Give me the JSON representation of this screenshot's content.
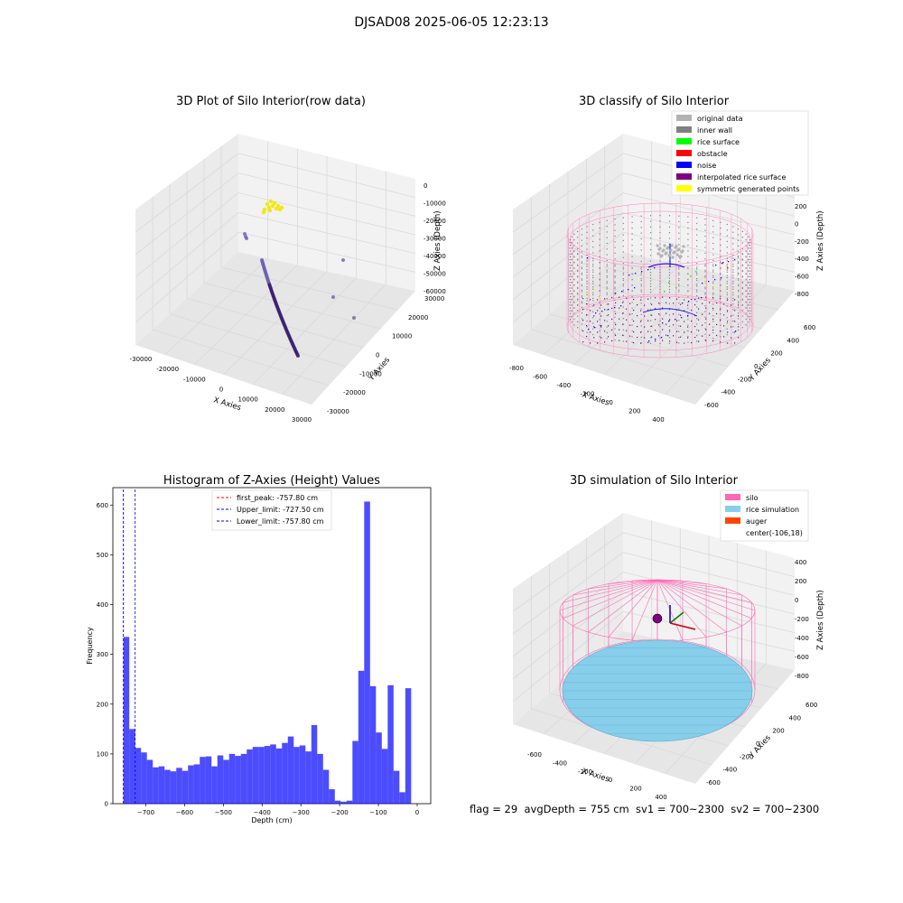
{
  "figure": {
    "suptitle": "DJSAD08 2025-06-05 12:23:13",
    "footer": "flag = 29  avgDepth = 755 cm  sv1 = 700~2300  sv2 = 700~2300"
  },
  "chart_data": [
    {
      "type": "scatter",
      "subtype": "3d",
      "title": "3D Plot of Silo Interior(row data)",
      "xlabel": "X Axies",
      "ylabel": "Y Axies",
      "zlabel": "Z Axies (Depth)",
      "x_ticks": [
        "-30000",
        "-20000",
        "-10000",
        "0",
        "10000",
        "20000",
        "30000"
      ],
      "y_ticks": [
        "-30000",
        "-20000",
        "-10000",
        "0",
        "10000",
        "20000",
        "30000"
      ],
      "z_ticks": [
        "-60000",
        "-50000",
        "-40000",
        "-30000",
        "-20000",
        "-10000",
        "0"
      ],
      "grid": true,
      "series": [
        {
          "color": "#3b1e6e",
          "description_points": "curved arc of points descending from about (-2000,-2000,-40000) to (20000,0,-60000)"
        },
        {
          "color": "#f5e614",
          "description_points": "small cluster near the top"
        },
        {
          "color": "#7b6fb0",
          "description_points": "few scattered outlier points"
        }
      ],
      "colors": {
        "arc": "#3b1e6e",
        "cluster": "#f5e614",
        "outlier": "#6a5fb0"
      }
    },
    {
      "type": "scatter",
      "subtype": "3d",
      "title": "3D classify of Silo Interior",
      "ylabel": "Y Axies",
      "xlabel": "X Axies",
      "zlabel": "Z Axies (Depth)",
      "x_ticks": [
        "-800",
        "-600",
        "-400",
        "-200",
        "0",
        "200",
        "400"
      ],
      "y_ticks": [
        "-600",
        "-400",
        "-200",
        "0",
        "200",
        "400",
        "600"
      ],
      "z_ticks": [
        "-800",
        "-600",
        "-400",
        "-200",
        "0",
        "200"
      ],
      "legend_placement": "top-right",
      "legend": [
        {
          "label": "original data",
          "color": "#b3b3b3"
        },
        {
          "label": "inner wall",
          "color": "#808080"
        },
        {
          "label": "rice surface",
          "color": "#00ff00"
        },
        {
          "label": "obstacle",
          "color": "#ff0000"
        },
        {
          "label": "noise",
          "color": "#0000ff"
        },
        {
          "label": "interpolated rice surface",
          "color": "#800080"
        },
        {
          "label": "symmetric generated points",
          "color": "#ffff00"
        }
      ],
      "grid": true
    },
    {
      "type": "bar",
      "subtype": "histogram",
      "title": "Histogram of Z-Axies (Height) Values",
      "xlabel": "Depth (cm)",
      "ylabel": "Frequency",
      "xlim": [
        -785,
        35
      ],
      "ylim": [
        0,
        635
      ],
      "x_ticks": [
        -700,
        -600,
        -500,
        -400,
        -300,
        -200,
        -100,
        0
      ],
      "y_ticks": [
        0,
        100,
        200,
        300,
        400,
        500,
        600
      ],
      "bin_start": -757.8,
      "bin_width": 15.15,
      "values": [
        335,
        150,
        112,
        103,
        88,
        73,
        75,
        68,
        65,
        72,
        66,
        77,
        79,
        94,
        95,
        75,
        97,
        88,
        100,
        96,
        100,
        109,
        114,
        114,
        116,
        119,
        111,
        122,
        135,
        114,
        117,
        105,
        158,
        100,
        68,
        29,
        6,
        4,
        6,
        126,
        267,
        607,
        236,
        143,
        110,
        238,
        66,
        23,
        232
      ],
      "bar_color": "#0000ff",
      "bar_opacity": 0.7,
      "vlines": [
        {
          "x": -757.8,
          "color": "#ff0000",
          "label": "first_peak: -757.80 cm"
        },
        {
          "x": -727.5,
          "color": "#0000ff",
          "label": "Upper_limit: -727.50 cm"
        },
        {
          "x": -757.8,
          "color": "#0000ff",
          "label": "Lower_limit: -757.80 cm"
        }
      ],
      "legend_placement": "top-center",
      "grid": false
    },
    {
      "type": "scatter",
      "subtype": "3d",
      "title": "3D simulation of Silo Interior",
      "xlabel": "X Axies",
      "ylabel": "Y Axies",
      "zlabel": "Z Axies (Depth)",
      "x_ticks": [
        "-600",
        "-400",
        "-200",
        "0",
        "200",
        "400"
      ],
      "y_ticks": [
        "-600",
        "-400",
        "-200",
        "0",
        "200",
        "400",
        "600"
      ],
      "z_ticks": [
        "-800",
        "-600",
        "-400",
        "-200",
        "0",
        "200",
        "400"
      ],
      "legend_placement": "top-right",
      "legend": [
        {
          "label": "silo",
          "color": "#ff69b4"
        },
        {
          "label": "rice simulation",
          "color": "#87ceeb"
        },
        {
          "label": "auger",
          "color": "#ff4500"
        },
        {
          "label": "center(-106,18)",
          "color": ""
        }
      ],
      "grid": true
    }
  ]
}
